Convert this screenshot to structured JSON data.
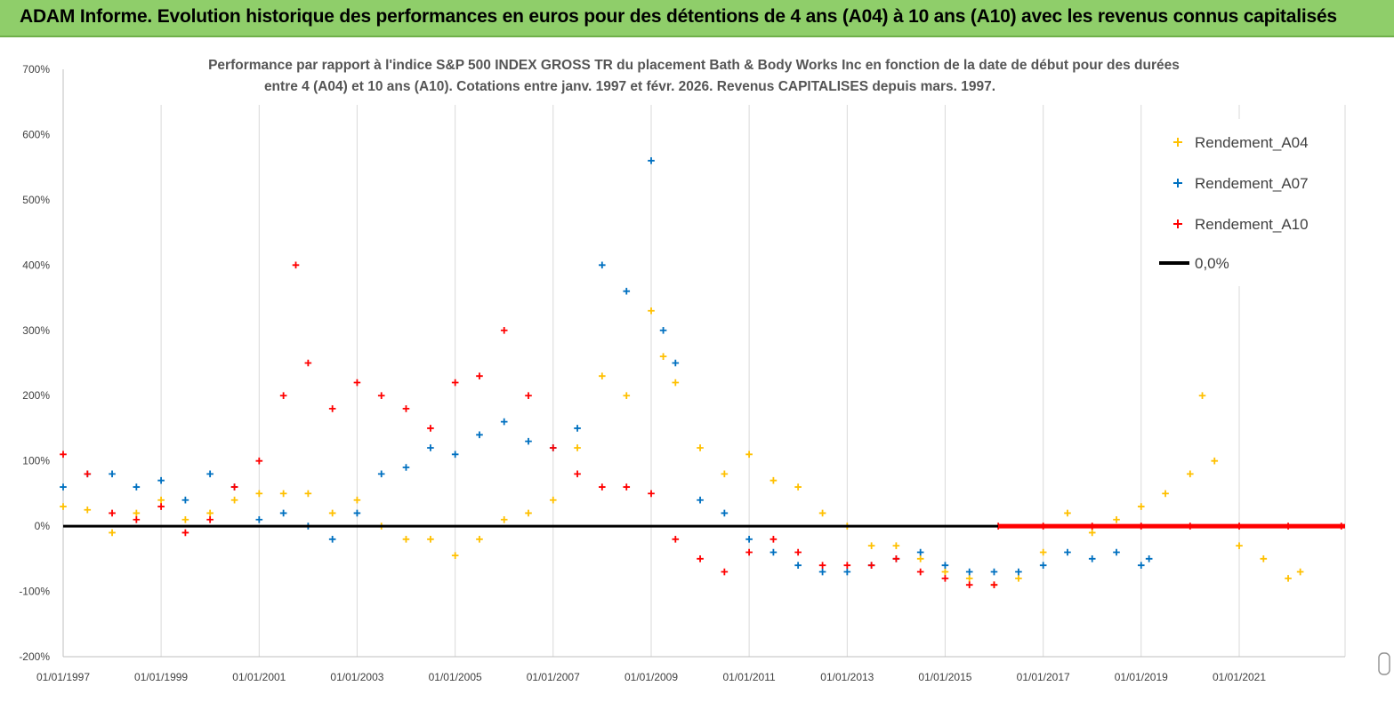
{
  "banner": {
    "title": "ADAM Informe. Evolution historique des performances en euros pour des détentions de 4 ans (A04) à 10 ans (A10) avec les revenus connus capitalisés"
  },
  "chart_data": {
    "type": "scatter",
    "title_lines": [
      "Performance par rapport à l'indice S&P 500 INDEX GROSS TR  du placement Bath & Body Works Inc en fonction de la date de début pour des durées",
      "entre 4 (A04) et 10 ans (A10).  Cotations entre janv. 1997 et févr. 2026. Revenus CAPITALISES depuis mars. 1997."
    ],
    "xlabel": "",
    "ylabel": "",
    "x_ticks": [
      "01/01/1997",
      "01/01/1999",
      "01/01/2001",
      "01/01/2003",
      "01/01/2005",
      "01/01/2007",
      "01/01/2009",
      "01/01/2011",
      "01/01/2013",
      "01/01/2015",
      "01/01/2017",
      "01/01/2019",
      "01/01/2021"
    ],
    "xlim": [
      "1997-01-01",
      "2023-03-01"
    ],
    "ylim": [
      -200,
      700
    ],
    "y_ticks": [
      -200,
      -100,
      0,
      100,
      200,
      300,
      400,
      500,
      600,
      700
    ],
    "y_tick_labels": [
      "-200%",
      "-100%",
      "0%",
      "100%",
      "200%",
      "300%",
      "400%",
      "500%",
      "600%",
      "700%"
    ],
    "grid": "vertical",
    "legend_position": "top-right",
    "series": [
      {
        "name": "Rendement_A04",
        "color": "#ffc000",
        "marker": "cross",
        "points": [
          [
            "1997-01-01",
            30
          ],
          [
            "1997-07-01",
            25
          ],
          [
            "1998-01-01",
            -10
          ],
          [
            "1998-07-01",
            20
          ],
          [
            "1999-01-01",
            40
          ],
          [
            "1999-07-01",
            10
          ],
          [
            "2000-01-01",
            20
          ],
          [
            "2000-07-01",
            40
          ],
          [
            "2001-01-01",
            50
          ],
          [
            "2001-07-01",
            50
          ],
          [
            "2002-01-01",
            50
          ],
          [
            "2002-07-01",
            20
          ],
          [
            "2003-01-01",
            40
          ],
          [
            "2003-07-01",
            0
          ],
          [
            "2004-01-01",
            -20
          ],
          [
            "2004-07-01",
            -20
          ],
          [
            "2005-01-01",
            -45
          ],
          [
            "2005-07-01",
            -20
          ],
          [
            "2006-01-01",
            10
          ],
          [
            "2006-07-01",
            20
          ],
          [
            "2007-01-01",
            40
          ],
          [
            "2007-07-01",
            120
          ],
          [
            "2008-01-01",
            230
          ],
          [
            "2008-07-01",
            200
          ],
          [
            "2009-01-01",
            330
          ],
          [
            "2009-04-01",
            260
          ],
          [
            "2009-07-01",
            220
          ],
          [
            "2010-01-01",
            120
          ],
          [
            "2010-07-01",
            80
          ],
          [
            "2011-01-01",
            110
          ],
          [
            "2011-07-01",
            70
          ],
          [
            "2012-01-01",
            60
          ],
          [
            "2012-07-01",
            20
          ],
          [
            "2013-01-01",
            0
          ],
          [
            "2013-07-01",
            -30
          ],
          [
            "2014-01-01",
            -30
          ],
          [
            "2014-07-01",
            -50
          ],
          [
            "2015-01-01",
            -70
          ],
          [
            "2015-07-01",
            -80
          ],
          [
            "2016-01-01",
            -90
          ],
          [
            "2016-07-01",
            -80
          ],
          [
            "2017-01-01",
            -40
          ],
          [
            "2017-07-01",
            20
          ],
          [
            "2018-01-01",
            -10
          ],
          [
            "2018-07-01",
            10
          ],
          [
            "2019-01-01",
            30
          ],
          [
            "2019-07-01",
            50
          ],
          [
            "2020-01-01",
            80
          ],
          [
            "2020-04-01",
            200
          ],
          [
            "2020-07-01",
            100
          ],
          [
            "2021-01-01",
            -30
          ],
          [
            "2021-07-01",
            -50
          ],
          [
            "2022-01-01",
            -80
          ],
          [
            "2022-04-01",
            -70
          ]
        ]
      },
      {
        "name": "Rendement_A07",
        "color": "#0070c0",
        "marker": "cross",
        "points": [
          [
            "1997-01-01",
            60
          ],
          [
            "1997-07-01",
            80
          ],
          [
            "1998-01-01",
            80
          ],
          [
            "1998-07-01",
            60
          ],
          [
            "1999-01-01",
            70
          ],
          [
            "1999-07-01",
            40
          ],
          [
            "2000-01-01",
            80
          ],
          [
            "2000-07-01",
            60
          ],
          [
            "2001-01-01",
            10
          ],
          [
            "2001-07-01",
            20
          ],
          [
            "2002-01-01",
            0
          ],
          [
            "2002-07-01",
            -20
          ],
          [
            "2003-01-01",
            20
          ],
          [
            "2003-07-01",
            80
          ],
          [
            "2004-01-01",
            90
          ],
          [
            "2004-07-01",
            120
          ],
          [
            "2005-01-01",
            110
          ],
          [
            "2005-07-01",
            140
          ],
          [
            "2006-01-01",
            160
          ],
          [
            "2006-07-01",
            130
          ],
          [
            "2007-01-01",
            120
          ],
          [
            "2007-07-01",
            150
          ],
          [
            "2008-01-01",
            400
          ],
          [
            "2008-07-01",
            360
          ],
          [
            "2009-01-01",
            560
          ],
          [
            "2009-04-01",
            300
          ],
          [
            "2009-07-01",
            250
          ],
          [
            "2010-01-01",
            40
          ],
          [
            "2010-07-01",
            20
          ],
          [
            "2011-01-01",
            -20
          ],
          [
            "2011-07-01",
            -40
          ],
          [
            "2012-01-01",
            -60
          ],
          [
            "2012-07-01",
            -70
          ],
          [
            "2013-01-01",
            -70
          ],
          [
            "2013-07-01",
            -60
          ],
          [
            "2014-01-01",
            -50
          ],
          [
            "2014-07-01",
            -40
          ],
          [
            "2015-01-01",
            -60
          ],
          [
            "2015-07-01",
            -70
          ],
          [
            "2016-01-01",
            -70
          ],
          [
            "2016-07-01",
            -70
          ],
          [
            "2017-01-01",
            -60
          ],
          [
            "2017-07-01",
            -40
          ],
          [
            "2018-01-01",
            -50
          ],
          [
            "2018-07-01",
            -40
          ],
          [
            "2019-01-01",
            -60
          ],
          [
            "2019-03-01",
            -50
          ]
        ]
      },
      {
        "name": "Rendement_A10",
        "color": "#ff0000",
        "marker": "cross",
        "points": [
          [
            "1997-01-01",
            110
          ],
          [
            "1997-07-01",
            80
          ],
          [
            "1998-01-01",
            20
          ],
          [
            "1998-07-01",
            10
          ],
          [
            "1999-01-01",
            30
          ],
          [
            "1999-07-01",
            -10
          ],
          [
            "2000-01-01",
            10
          ],
          [
            "2000-07-01",
            60
          ],
          [
            "2001-01-01",
            100
          ],
          [
            "2001-07-01",
            200
          ],
          [
            "2001-10-01",
            400
          ],
          [
            "2002-01-01",
            250
          ],
          [
            "2002-07-01",
            180
          ],
          [
            "2003-01-01",
            220
          ],
          [
            "2003-07-01",
            200
          ],
          [
            "2004-01-01",
            180
          ],
          [
            "2004-07-01",
            150
          ],
          [
            "2005-01-01",
            220
          ],
          [
            "2005-07-01",
            230
          ],
          [
            "2006-01-01",
            300
          ],
          [
            "2006-07-01",
            200
          ],
          [
            "2007-01-01",
            120
          ],
          [
            "2007-07-01",
            80
          ],
          [
            "2008-01-01",
            60
          ],
          [
            "2008-07-01",
            60
          ],
          [
            "2009-01-01",
            50
          ],
          [
            "2009-07-01",
            -20
          ],
          [
            "2010-01-01",
            -50
          ],
          [
            "2010-07-01",
            -70
          ],
          [
            "2011-01-01",
            -40
          ],
          [
            "2011-07-01",
            -20
          ],
          [
            "2012-01-01",
            -40
          ],
          [
            "2012-07-01",
            -60
          ],
          [
            "2013-01-01",
            -60
          ],
          [
            "2013-07-01",
            -60
          ],
          [
            "2014-01-01",
            -50
          ],
          [
            "2014-07-01",
            -70
          ],
          [
            "2015-01-01",
            -80
          ],
          [
            "2015-07-01",
            -90
          ],
          [
            "2016-01-01",
            -90
          ],
          [
            "2016-02-01",
            0
          ],
          [
            "2017-01-01",
            0
          ],
          [
            "2018-01-01",
            0
          ],
          [
            "2019-01-01",
            0
          ],
          [
            "2020-01-01",
            0
          ],
          [
            "2021-01-01",
            0
          ],
          [
            "2022-01-01",
            0
          ],
          [
            "2023-02-01",
            0
          ]
        ]
      }
    ],
    "reference_line": {
      "name": "0,0%",
      "value": 0,
      "color": "#000000"
    }
  }
}
